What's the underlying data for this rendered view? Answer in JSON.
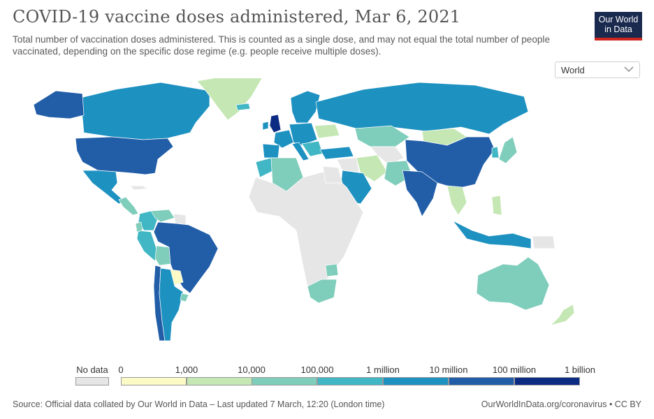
{
  "header": {
    "title": "COVID-19 vaccine doses administered, Mar 6, 2021",
    "subtitle": "Total number of vaccination doses administered. This is counted as a single dose, and may not equal the total number of people vaccinated, depending on the specific dose regime (e.g. people receive multiple doses).",
    "logo_line1": "Our World",
    "logo_line2": "in Data"
  },
  "region_select": {
    "selected": "World"
  },
  "legend": {
    "no_data_label": "No data",
    "bins": [
      {
        "label": "0",
        "color": "#fcfbc6"
      },
      {
        "label": "1,000",
        "color": "#c5e7b4"
      },
      {
        "label": "10,000",
        "color": "#7fcdbb"
      },
      {
        "label": "100,000",
        "color": "#41b6c4"
      },
      {
        "label": "1 million",
        "color": "#1d91c0"
      },
      {
        "label": "10 million",
        "color": "#225ea8"
      },
      {
        "label": "100 million",
        "color": "#0c2c84"
      },
      {
        "label": "1 billion",
        "color": ""
      }
    ],
    "no_data_color": "#e6e6e6"
  },
  "footer": {
    "source": "Source: Official data collated by Our World in Data – Last updated 7 March, 12:20 (London time)",
    "link": "OurWorldInData.org/coronavirus • CC BY"
  },
  "colors": {
    "no_data": "#e6e6e6",
    "border": "#ffffff"
  }
}
